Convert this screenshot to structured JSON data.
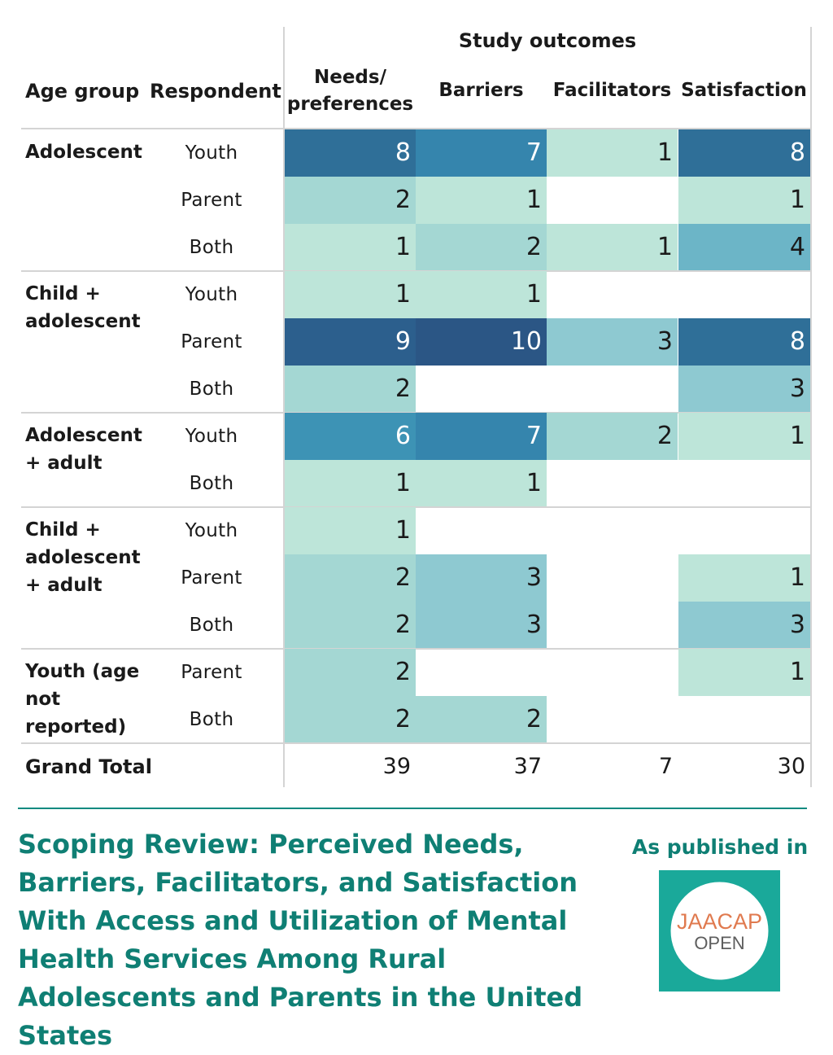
{
  "header": {
    "study_outcomes": "Study outcomes",
    "age_group": "Age group",
    "respondent": "Respondent",
    "columns": [
      "Needs/\npreferences",
      "Barriers",
      "Facilitators",
      "Satisfaction"
    ]
  },
  "colors": {
    "level_1": "#bde5d9",
    "level_2": "#a4d7d3",
    "level_3": "#8ec9d1",
    "level_4": "#6cb5c7",
    "level_6": "#3d93b5",
    "level_7": "#3585ad",
    "level_8": "#2f6f98",
    "level_9": "#2c5f8d",
    "level_10": "#2b5685",
    "accent": "#0f7f74"
  },
  "chart_data": {
    "type": "table",
    "title": "Study outcomes",
    "columns": [
      "Needs/preferences",
      "Barriers",
      "Facilitators",
      "Satisfaction"
    ],
    "groups": [
      {
        "age_group": "Adolescent",
        "rows": [
          {
            "respondent": "Youth",
            "values": [
              8,
              7,
              1,
              8
            ]
          },
          {
            "respondent": "Parent",
            "values": [
              2,
              1,
              null,
              1
            ]
          },
          {
            "respondent": "Both",
            "values": [
              1,
              2,
              1,
              4
            ]
          }
        ]
      },
      {
        "age_group": "Child +\nadolescent",
        "rows": [
          {
            "respondent": "Youth",
            "values": [
              1,
              1,
              null,
              null
            ]
          },
          {
            "respondent": "Parent",
            "values": [
              9,
              10,
              3,
              8
            ]
          },
          {
            "respondent": "Both",
            "values": [
              2,
              null,
              null,
              3
            ]
          }
        ]
      },
      {
        "age_group": "Adolescent\n+ adult",
        "rows": [
          {
            "respondent": "Youth",
            "values": [
              6,
              7,
              2,
              1
            ]
          },
          {
            "respondent": "Both",
            "values": [
              1,
              1,
              null,
              null
            ]
          }
        ]
      },
      {
        "age_group": "Child +\nadolescent\n+ adult",
        "rows": [
          {
            "respondent": "Youth",
            "values": [
              1,
              null,
              null,
              null
            ]
          },
          {
            "respondent": "Parent",
            "values": [
              2,
              3,
              null,
              1
            ]
          },
          {
            "respondent": "Both",
            "values": [
              2,
              3,
              null,
              3
            ]
          }
        ]
      },
      {
        "age_group": "Youth (age\nnot\nreported)",
        "rows": [
          {
            "respondent": "Parent",
            "values": [
              2,
              null,
              null,
              1
            ]
          },
          {
            "respondent": "Both",
            "values": [
              2,
              2,
              null,
              null
            ]
          }
        ]
      }
    ],
    "grand_total_label": "Grand Total",
    "grand_totals": [
      39,
      37,
      7,
      30
    ]
  },
  "footer": {
    "title": "Scoping Review: Perceived Needs, Barriers, Facilitators, and Satisfaction With Access and Utilization of Mental Health Services Among Rural Adolescents and Parents in the United States",
    "published_in": "As published in",
    "logo_text_top": "JAACAP",
    "logo_text_bottom": "OPEN"
  }
}
